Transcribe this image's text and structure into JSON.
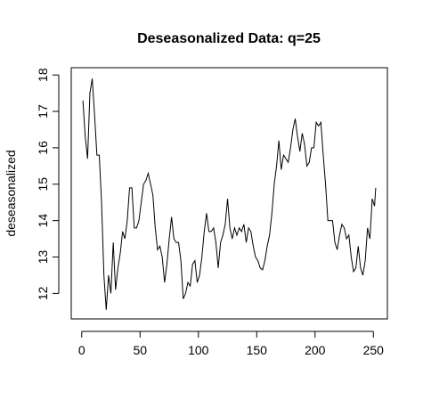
{
  "chart_data": {
    "type": "line",
    "title": "Deseasonalized Data: q=25",
    "ylabel": "deseasonalized",
    "x": [
      1,
      3,
      5,
      7,
      9,
      11,
      13,
      15,
      17,
      19,
      21,
      23,
      25,
      27,
      29,
      31,
      33,
      35,
      37,
      39,
      41,
      43,
      45,
      47,
      49,
      51,
      53,
      55,
      57,
      59,
      61,
      63,
      65,
      67,
      69,
      71,
      73,
      75,
      77,
      79,
      81,
      83,
      85,
      87,
      89,
      91,
      93,
      95,
      97,
      99,
      101,
      103,
      105,
      107,
      109,
      111,
      113,
      115,
      117,
      119,
      121,
      123,
      125,
      127,
      129,
      131,
      133,
      135,
      137,
      139,
      141,
      143,
      145,
      147,
      149,
      151,
      153,
      155,
      157,
      159,
      161,
      163,
      165,
      167,
      169,
      171,
      173,
      175,
      177,
      179,
      181,
      183,
      185,
      187,
      189,
      191,
      193,
      195,
      197,
      199,
      201,
      203,
      205,
      207,
      209,
      211,
      213,
      215,
      217,
      219,
      221,
      223,
      225,
      227,
      229,
      231,
      233,
      235,
      237,
      239,
      241,
      243,
      245,
      247,
      249,
      251,
      252
    ],
    "series": [
      {
        "color": "#000000",
        "values": [
          17.3,
          16.3,
          15.7,
          17.5,
          17.9,
          16.9,
          15.8,
          15.8,
          14.5,
          12.5,
          11.55,
          12.5,
          12.0,
          13.4,
          12.1,
          12.7,
          13.1,
          13.7,
          13.5,
          14.0,
          14.9,
          14.9,
          13.8,
          13.8,
          14.0,
          14.5,
          15.0,
          15.1,
          15.3,
          15.0,
          14.7,
          13.8,
          13.2,
          13.3,
          13.0,
          12.3,
          12.8,
          13.5,
          14.1,
          13.5,
          13.4,
          13.4,
          12.9,
          11.85,
          12.0,
          12.3,
          12.2,
          12.8,
          12.9,
          12.3,
          12.5,
          13.0,
          13.7,
          14.2,
          13.7,
          13.7,
          13.8,
          13.4,
          12.7,
          13.4,
          13.6,
          13.9,
          14.6,
          13.8,
          13.5,
          13.8,
          13.6,
          13.8,
          13.7,
          13.9,
          13.4,
          13.8,
          13.7,
          13.3,
          13.0,
          12.9,
          12.7,
          12.65,
          12.9,
          13.3,
          13.6,
          14.2,
          15.0,
          15.5,
          16.2,
          15.4,
          15.8,
          15.7,
          15.6,
          16.0,
          16.5,
          16.8,
          16.3,
          15.9,
          16.4,
          16.1,
          15.5,
          15.6,
          16.0,
          16.0,
          16.7,
          16.6,
          16.7,
          15.8,
          15.0,
          14.0,
          14.0,
          14.0,
          13.4,
          13.2,
          13.6,
          13.9,
          13.8,
          13.5,
          13.6,
          13.0,
          12.6,
          12.7,
          13.3,
          12.7,
          12.5,
          12.9,
          13.8,
          13.5,
          14.6,
          14.4,
          14.9
        ]
      }
    ],
    "xlim": [
      -9,
      262
    ],
    "ylim": [
      11.3,
      18.2
    ],
    "xticks": [
      0,
      50,
      100,
      150,
      200,
      250
    ],
    "yticks": [
      12,
      13,
      14,
      15,
      16,
      17,
      18
    ]
  }
}
